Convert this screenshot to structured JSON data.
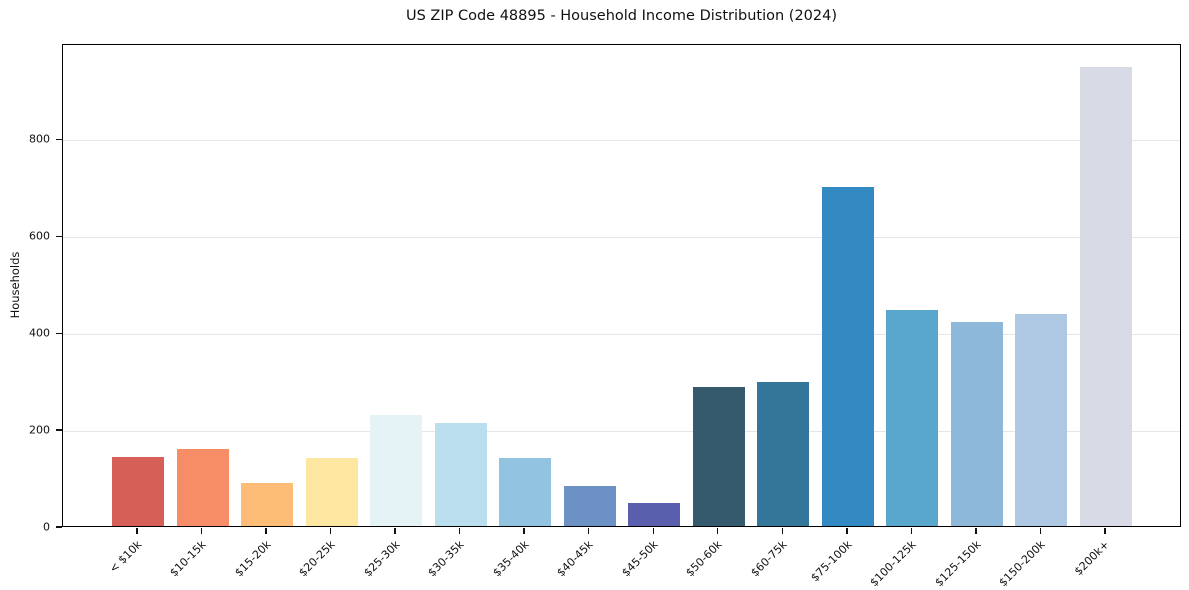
{
  "title": "US ZIP Code 48895 - Household Income Distribution (2024)",
  "chart_data": {
    "type": "bar",
    "title": "US ZIP Code 48895 - Household Income Distribution (2024)",
    "xlabel": "",
    "ylabel": "Households",
    "categories": [
      "< $10k",
      "$10-15k",
      "$15-20k",
      "$20-25k",
      "$25-30k",
      "$30-35k",
      "$35-40k",
      "$40-45k",
      "$45-50k",
      "$50-60k",
      "$60-75k",
      "$75-100k",
      "$100-125k",
      "$125-150k",
      "$150-200k",
      "$200k+"
    ],
    "values": [
      142,
      160,
      88,
      141,
      230,
      213,
      140,
      83,
      48,
      286,
      297,
      700,
      445,
      422,
      437,
      948
    ],
    "bar_colors": [
      "#d65f57",
      "#f68d67",
      "#fdbd77",
      "#fee7a0",
      "#e5f2f6",
      "#badeed",
      "#92c4e1",
      "#6c92c5",
      "#5a5fad",
      "#35596d",
      "#33769a",
      "#3389c1",
      "#5aa7ce",
      "#8db8da",
      "#aec8e3",
      "#d8dae6"
    ],
    "yticks": [
      0,
      200,
      400,
      600,
      800
    ],
    "ylim": [
      0,
      997
    ],
    "grid": "horizontal-only",
    "gridline_color": "#e6e6e6",
    "legend": "none",
    "background_color": "#ffffff",
    "spine_color": "#000000"
  }
}
